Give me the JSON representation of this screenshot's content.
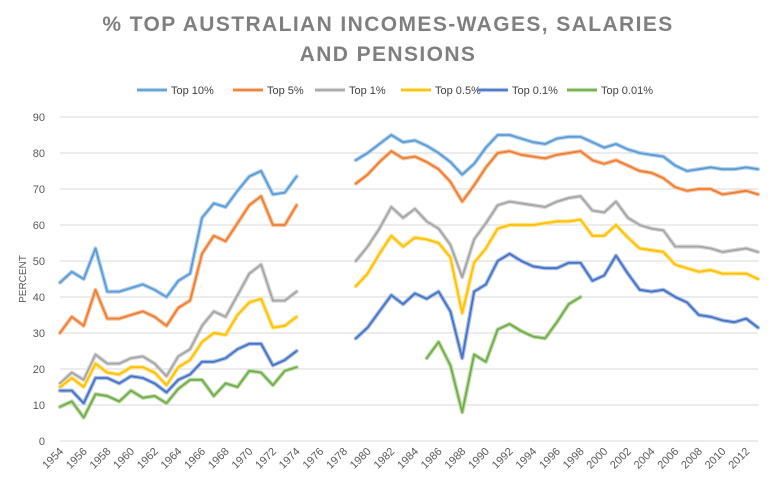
{
  "chart_data": {
    "type": "line",
    "title_lines": [
      "% TOP AUSTRALIAN INCOMES-WAGES, SALARIES",
      "AND PENSIONS"
    ],
    "xlabel": "",
    "ylabel": "PERCENT",
    "ylim": [
      0,
      90
    ],
    "y_ticks": [
      "0",
      "10",
      "20",
      "30",
      "40",
      "50",
      "60",
      "70",
      "80",
      "90"
    ],
    "x_range": [
      1954,
      2013
    ],
    "x_ticks": [
      "1954",
      "1956",
      "1958",
      "1960",
      "1962",
      "1964",
      "1966",
      "1968",
      "1970",
      "1972",
      "1974",
      "1976",
      "1978",
      "1980",
      "1982",
      "1984",
      "1986",
      "1988",
      "1990",
      "1992",
      "1994",
      "1996",
      "1998",
      "2000",
      "2002",
      "2004",
      "2006",
      "2008",
      "2010",
      "2012"
    ],
    "grid": true,
    "legend_position": "top",
    "series": [
      {
        "name": "Top 10%",
        "color": "#5b9bd5",
        "segments": [
          {
            "x": [
              1954,
              1955,
              1956,
              1957,
              1958,
              1959,
              1960,
              1961,
              1962,
              1963,
              1964,
              1965,
              1966,
              1967,
              1968,
              1969,
              1970,
              1971,
              1972,
              1973,
              1974
            ],
            "y": [
              44,
              47,
              45,
              53.5,
              41.5,
              41.5,
              42.5,
              43.5,
              42,
              40,
              44.5,
              46.5,
              62,
              66,
              65,
              69.5,
              73.5,
              75,
              68.5,
              69,
              73.5
            ]
          },
          {
            "x": [
              1979,
              1980,
              1981,
              1982,
              1983,
              1984,
              1985,
              1986,
              1987,
              1988,
              1989,
              1990,
              1991,
              1992,
              1993,
              1994,
              1995,
              1996,
              1997,
              1998,
              1999,
              2000,
              2001,
              2002,
              2003,
              2004,
              2005,
              2006,
              2007,
              2008,
              2009,
              2010,
              2011,
              2012,
              2013
            ],
            "y": [
              78,
              80,
              82.5,
              85,
              83,
              83.5,
              82,
              80,
              77.5,
              74,
              77,
              81.5,
              85,
              85,
              84,
              83,
              82.5,
              84,
              84.5,
              84.5,
              83,
              81.5,
              82.5,
              81,
              80,
              79.5,
              79,
              76.5,
              75,
              75.5,
              76,
              75.5,
              75.5,
              76,
              75.5
            ]
          }
        ]
      },
      {
        "name": "Top 5%",
        "color": "#ed7d31",
        "segments": [
          {
            "x": [
              1954,
              1955,
              1956,
              1957,
              1958,
              1959,
              1960,
              1961,
              1962,
              1963,
              1964,
              1965,
              1966,
              1967,
              1968,
              1969,
              1970,
              1971,
              1972,
              1973,
              1974
            ],
            "y": [
              30,
              34.5,
              32,
              42,
              34,
              34,
              35,
              36,
              34.5,
              32,
              37,
              39,
              52,
              57,
              55.5,
              60.5,
              65.5,
              68,
              60,
              60,
              65.5
            ]
          },
          {
            "x": [
              1979,
              1980,
              1981,
              1982,
              1983,
              1984,
              1985,
              1986,
              1987,
              1988,
              1989,
              1990,
              1991,
              1992,
              1993,
              1994,
              1995,
              1996,
              1997,
              1998,
              1999,
              2000,
              2001,
              2002,
              2003,
              2004,
              2005,
              2006,
              2007,
              2008,
              2009,
              2010,
              2011,
              2012,
              2013
            ],
            "y": [
              71.5,
              74,
              77.5,
              80.5,
              78.5,
              79,
              77.5,
              75.5,
              72,
              66.5,
              71,
              76,
              80,
              80.5,
              79.5,
              79,
              78.5,
              79.5,
              80,
              80.5,
              78,
              77,
              78,
              76.5,
              75,
              74.5,
              73,
              70.5,
              69.5,
              70,
              70,
              68.5,
              69,
              69.5,
              68.5
            ]
          }
        ]
      },
      {
        "name": "Top 1%",
        "color": "#a5a5a5",
        "segments": [
          {
            "x": [
              1954,
              1955,
              1956,
              1957,
              1958,
              1959,
              1960,
              1961,
              1962,
              1963,
              1964,
              1965,
              1966,
              1967,
              1968,
              1969,
              1970,
              1971,
              1972,
              1973,
              1974
            ],
            "y": [
              16,
              19,
              17,
              24,
              21.5,
              21.5,
              23,
              23.5,
              21.5,
              18,
              23.5,
              25.5,
              32,
              36,
              34.5,
              40.5,
              46.5,
              49,
              39,
              39,
              41.5
            ]
          },
          {
            "x": [
              1979,
              1980,
              1981,
              1982,
              1983,
              1984,
              1985,
              1986,
              1987,
              1988,
              1989,
              1990,
              1991,
              1992,
              1993,
              1994,
              1995,
              1996,
              1997,
              1998,
              1999,
              2000,
              2001,
              2002,
              2003,
              2004,
              2005,
              2006,
              2007,
              2008,
              2009,
              2010,
              2011,
              2012,
              2013
            ],
            "y": [
              50,
              54,
              59,
              65,
              62,
              64.5,
              61,
              59,
              54.5,
              45.5,
              56,
              60.5,
              65.5,
              66.5,
              66,
              65.5,
              65,
              66.5,
              67.5,
              68,
              64,
              63.5,
              66.5,
              62,
              60,
              59,
              58.5,
              54,
              54,
              54,
              53.5,
              52.5,
              53,
              53.5,
              52.5
            ]
          }
        ]
      },
      {
        "name": "Top 0.5%",
        "color": "#ffc000",
        "segments": [
          {
            "x": [
              1954,
              1955,
              1956,
              1957,
              1958,
              1959,
              1960,
              1961,
              1962,
              1963,
              1964,
              1965,
              1966,
              1967,
              1968,
              1969,
              1970,
              1971,
              1972,
              1973,
              1974
            ],
            "y": [
              15,
              17.5,
              15,
              21.5,
              19,
              18.5,
              20.5,
              20.5,
              19,
              15.5,
              20.5,
              22.5,
              27.5,
              30,
              29.5,
              35,
              38.5,
              39.5,
              31.5,
              32,
              34.5
            ]
          },
          {
            "x": [
              1979,
              1980,
              1981,
              1982,
              1983,
              1984,
              1985,
              1986,
              1987,
              1988,
              1989,
              1990,
              1991,
              1992,
              1993,
              1994,
              1995,
              1996,
              1997,
              1998,
              1999,
              2000,
              2001,
              2002,
              2003,
              2004,
              2005,
              2006,
              2007,
              2008,
              2009,
              2010,
              2011,
              2012,
              2013
            ],
            "y": [
              43,
              46.5,
              52,
              57,
              54,
              56.5,
              56,
              55,
              51,
              35.5,
              49.5,
              53.5,
              59,
              60,
              60,
              60,
              60.5,
              61,
              61,
              61.5,
              57,
              57,
              60,
              56.5,
              53.5,
              53,
              52.5,
              49,
              48,
              47,
              47.5,
              46.5,
              46.5,
              46.5,
              45
            ]
          }
        ]
      },
      {
        "name": "Top 0.1%",
        "color": "#4472c4",
        "segments": [
          {
            "x": [
              1954,
              1955,
              1956,
              1957,
              1958,
              1959,
              1960,
              1961,
              1962,
              1963,
              1964,
              1965,
              1966,
              1967,
              1968,
              1969,
              1970,
              1971,
              1972,
              1973,
              1974
            ],
            "y": [
              14,
              14,
              10.5,
              17.5,
              17.5,
              16,
              18,
              17.5,
              16,
              13.5,
              17,
              18.5,
              22,
              22,
              23,
              25.5,
              27,
              27,
              21,
              22.5,
              25
            ]
          },
          {
            "x": [
              1979,
              1980,
              1981,
              1982,
              1983,
              1984,
              1985,
              1986,
              1987,
              1988,
              1989,
              1990,
              1991,
              1992,
              1993,
              1994,
              1995,
              1996,
              1997,
              1998,
              1999,
              2000,
              2001,
              2002,
              2003,
              2004,
              2005,
              2006,
              2007,
              2008,
              2009,
              2010,
              2011,
              2012,
              2013
            ],
            "y": [
              28.5,
              31.5,
              36,
              40.5,
              38,
              41,
              39.5,
              41.5,
              36,
              23,
              41.5,
              43.5,
              50,
              52,
              50,
              48.5,
              48,
              48,
              49.5,
              49.5,
              44.5,
              46,
              51.5,
              46.5,
              42,
              41.5,
              42,
              40,
              38.5,
              35,
              34.5,
              33.5,
              33,
              34,
              31.5
            ]
          }
        ]
      },
      {
        "name": "Top 0.01%",
        "color": "#70ad47",
        "segments": [
          {
            "x": [
              1954,
              1955,
              1956,
              1957,
              1958,
              1959,
              1960,
              1961,
              1962,
              1963,
              1964,
              1965,
              1966,
              1967,
              1968,
              1969,
              1970,
              1971,
              1972,
              1973,
              1974
            ],
            "y": [
              9.5,
              11,
              6.5,
              13,
              12.5,
              11,
              14,
              12,
              12.5,
              10.5,
              14.5,
              17,
              17,
              12.5,
              16,
              15,
              19.5,
              19,
              15.5,
              19.5,
              20.5
            ]
          },
          {
            "x": [
              1985,
              1986,
              1987,
              1988,
              1989,
              1990,
              1991,
              1992,
              1993,
              1994,
              1995,
              1996,
              1997,
              1998
            ],
            "y": [
              23,
              27.5,
              21,
              8,
              24,
              22,
              31,
              32.5,
              30.5,
              29,
              28.5,
              33,
              38,
              40
            ]
          }
        ]
      }
    ]
  }
}
